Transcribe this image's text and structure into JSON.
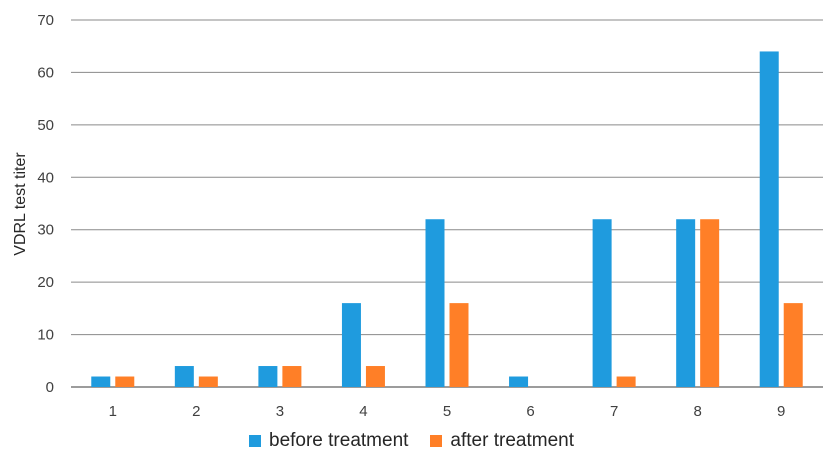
{
  "chart_data": {
    "type": "bar",
    "categories": [
      "1",
      "2",
      "3",
      "4",
      "5",
      "6",
      "7",
      "8",
      "9"
    ],
    "series": [
      {
        "name": "before treatment",
        "color": "#1f9bde",
        "values": [
          2,
          4,
          4,
          16,
          32,
          2,
          32,
          32,
          64
        ]
      },
      {
        "name": "after treatment",
        "color": "#ff7f27",
        "values": [
          2,
          2,
          4,
          4,
          16,
          0,
          2,
          32,
          16
        ]
      }
    ],
    "xlabel": "",
    "ylabel": "VDRL test titer",
    "ylim": [
      0,
      70
    ],
    "yticks": [
      0,
      10,
      20,
      30,
      40,
      50,
      60,
      70
    ],
    "grid": true,
    "legend_position": "bottom"
  }
}
